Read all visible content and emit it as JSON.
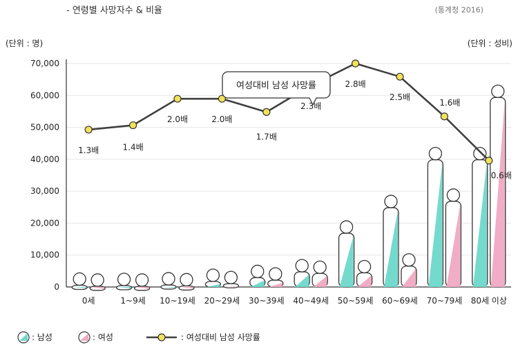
{
  "header": {
    "title": "- 연령별 사망자수 & 비율",
    "source": "(통계청 2016)",
    "unit_left": "(단위 : 명)",
    "unit_right": "(단위 : 성비)"
  },
  "callout": "여성대비 남성 사망률",
  "legend": {
    "male": ": 남성",
    "female": ": 여성",
    "ratio": ": 여성대비 남성 사망률"
  },
  "colors": {
    "male": "#6ed8cb",
    "female": "#f0a9c2",
    "line": "#3f3f3f",
    "marker": "#f2e25a",
    "axis": "#333333",
    "grid": "#e6e6e6"
  },
  "chart_data": {
    "type": "bar",
    "categories": [
      "0세",
      "1~9세",
      "10~19세",
      "20~29세",
      "30~39세",
      "40~49세",
      "50~59세",
      "60~69세",
      "70~79세",
      "80세 이상"
    ],
    "ylim": [
      0,
      70000
    ],
    "yticks": [
      "0",
      "10,000",
      "20,000",
      "30,000",
      "40,000",
      "50,000",
      "60,000",
      "70,000"
    ],
    "ytick_values": [
      0,
      10000,
      20000,
      30000,
      40000,
      50000,
      60000,
      70000
    ],
    "series": [
      {
        "name": "남성",
        "values": [
          1700,
          1600,
          1800,
          2900,
          4100,
          5900,
          18000,
          26000,
          41000,
          41000
        ]
      },
      {
        "name": "여성",
        "values": [
          1400,
          1400,
          1500,
          2200,
          3300,
          5400,
          5600,
          7700,
          28000,
          60500
        ]
      }
    ],
    "ratio_line": {
      "name": "여성대비 남성 사망률",
      "labels": [
        "1.3배",
        "1.4배",
        "2.0배",
        "2.0배",
        "1.7배",
        "2.3배",
        "2.8배",
        "2.5배",
        "1.6배",
        "0.6배"
      ]
    }
  }
}
